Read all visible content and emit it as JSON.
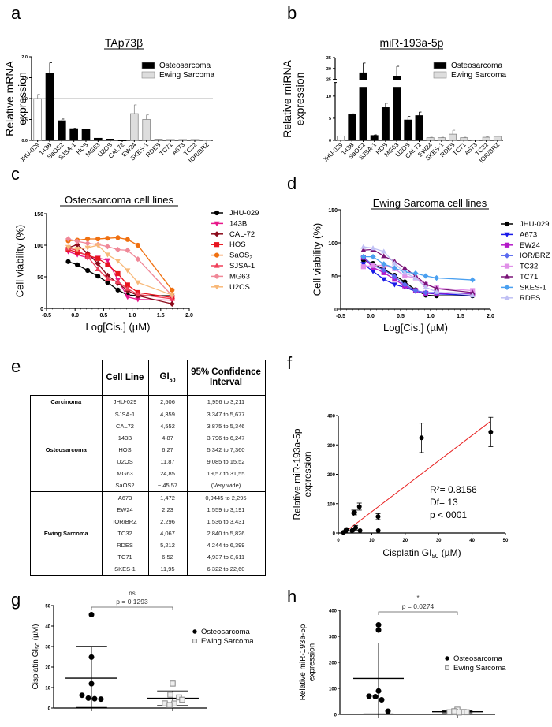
{
  "panels": {
    "a": "a",
    "b": "b",
    "c": "c",
    "d": "d",
    "e": "e",
    "f": "f",
    "g": "g",
    "h": "h"
  },
  "chart_data": [
    {
      "id": "a",
      "type": "bar",
      "title": "TAp73β",
      "xlabel": "",
      "ylabel": "Relative mRNA expression",
      "ylabel_lines": [
        "Relative mRNA",
        "expression"
      ],
      "ylim": [
        0,
        2.0
      ],
      "yticks": [
        "0.0",
        "0.5",
        "1.0",
        "1.5",
        "2.0"
      ],
      "reference_line": 1.0,
      "categories": [
        "JHU-029",
        "143B",
        "SaOS2",
        "SJSA-1",
        "HOS",
        "MG63",
        "U2OS",
        "CAL72",
        "EW24",
        "SKES-1",
        "RDES",
        "TC71",
        "A673",
        "TC32",
        "IOR/BRZ"
      ],
      "groups": [
        "control",
        "osteo",
        "osteo",
        "osteo",
        "osteo",
        "osteo",
        "osteo",
        "osteo",
        "ewing",
        "ewing",
        "ewing",
        "ewing",
        "ewing",
        "ewing",
        "ewing"
      ],
      "values": [
        1.0,
        1.6,
        0.47,
        0.28,
        0.26,
        0.05,
        0.03,
        0.0,
        0.64,
        0.5,
        0.03,
        0.02,
        0.02,
        0.02,
        0.01
      ],
      "errors": [
        0.1,
        0.26,
        0.04,
        0.01,
        0.01,
        0.0,
        0.0,
        0.0,
        0.21,
        0.11,
        0.0,
        0.0,
        0.0,
        0.0,
        0.0
      ],
      "legend": [
        {
          "name": "Osteosarcoma",
          "color": "#000000"
        },
        {
          "name": "Ewing Sarcoma",
          "color": "#dddddd"
        }
      ],
      "legend_position": "top-right"
    },
    {
      "id": "b",
      "type": "bar",
      "title": "miR-193a-5p",
      "ylabel": "Relative miRNA expression",
      "ylabel_lines": [
        "Relative miRNA",
        "expression"
      ],
      "ylim": [
        0,
        35
      ],
      "axis_break": [
        12,
        25
      ],
      "yticks_lower": [
        "0",
        "5",
        "10"
      ],
      "yticks_upper": [
        "25",
        "30",
        "35"
      ],
      "reference_line": 1.0,
      "categories": [
        "JHU-029",
        "143B",
        "SaOS2",
        "SJSA-1",
        "HOS",
        "MG63",
        "U2OS",
        "CAL72",
        "EW24",
        "SKES-1",
        "RDES",
        "TC71",
        "A673",
        "TC32",
        "IOR/BRZ"
      ],
      "groups": [
        "control",
        "osteo",
        "osteo",
        "osteo",
        "osteo",
        "osteo",
        "osteo",
        "osteo",
        "ewing",
        "ewing",
        "ewing",
        "ewing",
        "ewing",
        "ewing",
        "ewing"
      ],
      "values": [
        1.0,
        5.8,
        28.0,
        1.1,
        7.4,
        26.5,
        4.6,
        5.6,
        0.6,
        0.6,
        1.4,
        0.6,
        0.05,
        0.7,
        0.9
      ],
      "errors": [
        0.0,
        0.2,
        4.5,
        0.15,
        1.0,
        4.5,
        0.8,
        0.8,
        0.1,
        0.1,
        0.9,
        0.1,
        0.0,
        0.15,
        0.1
      ],
      "legend": [
        {
          "name": "Osteosarcoma",
          "color": "#000000"
        },
        {
          "name": "Ewing Sarcoma",
          "color": "#dddddd"
        }
      ],
      "legend_position": "top-right"
    },
    {
      "id": "c",
      "type": "line",
      "title": "Osteosarcoma cell lines",
      "xlabel": "Log[Cis.] (µM)",
      "ylabel": "Cell viability (%)",
      "xlim": [
        -0.5,
        2.0
      ],
      "ylim": [
        0,
        150
      ],
      "xticks": [
        "-0.5",
        "0.0",
        "0.5",
        "1.0",
        "1.5",
        "2.0"
      ],
      "yticks": [
        "0",
        "50",
        "100",
        "150"
      ],
      "x": [
        -0.12,
        0.04,
        0.22,
        0.4,
        0.57,
        0.75,
        0.92,
        1.1,
        1.7
      ],
      "series": [
        {
          "name": "JHU-029",
          "color": "#000000",
          "marker": "circle",
          "values": [
            74,
            69,
            60,
            51,
            41,
            29,
            21,
            20,
            20
          ]
        },
        {
          "name": "143B",
          "color": "#e8178a",
          "marker": "triangle-down",
          "values": [
            90,
            85,
            80,
            80,
            76,
            45,
            18,
            14,
            13
          ]
        },
        {
          "name": "CAL-72",
          "color": "#8b0a1a",
          "marker": "diamond",
          "values": [
            96,
            101,
            87,
            71,
            52,
            40,
            28,
            20,
            7
          ]
        },
        {
          "name": "HOS",
          "color": "#e8141e",
          "marker": "square",
          "values": [
            93,
            89,
            84,
            79,
            69,
            55,
            37,
            25,
            17
          ]
        },
        {
          "name": "SaOS2",
          "color": "#f07010",
          "marker": "circle",
          "values": [
            107,
            108,
            110,
            110,
            111,
            112,
            109,
            100,
            29
          ]
        },
        {
          "name": "SJSA-1",
          "color": "#f0405a",
          "marker": "triangle-up",
          "values": [
            95,
            92,
            82,
            62,
            47,
            42,
            31,
            22,
            15
          ]
        },
        {
          "name": "MG63",
          "color": "#f08898",
          "marker": "diamond",
          "values": [
            110,
            106,
            103,
            101,
            98,
            93,
            92,
            78,
            20
          ]
        },
        {
          "name": "U2OS",
          "color": "#f8b878",
          "marker": "triangle-down",
          "values": [
            97,
            94,
            96,
            100,
            85,
            75,
            60,
            41,
            21
          ]
        }
      ],
      "legend_position": "right"
    },
    {
      "id": "d",
      "type": "line",
      "title": "Ewing Sarcoma cell lines",
      "xlabel": "Log[Cis.] (µM)",
      "ylabel": "Cell viability (%)",
      "xlim": [
        -0.5,
        2.0
      ],
      "ylim": [
        0,
        150
      ],
      "xticks": [
        "-0.5",
        "0.0",
        "0.5",
        "1.0",
        "1.5",
        "2.0"
      ],
      "yticks": [
        "0",
        "50",
        "100",
        "150"
      ],
      "x": [
        -0.12,
        0.04,
        0.22,
        0.4,
        0.57,
        0.75,
        0.92,
        1.1,
        1.7
      ],
      "series": [
        {
          "name": "JHU-029",
          "color": "#000000",
          "marker": "circle",
          "values": [
            74,
            69,
            60,
            51,
            41,
            29,
            21,
            20,
            20
          ]
        },
        {
          "name": "A673",
          "color": "#1a1ae8",
          "marker": "triangle-down",
          "values": [
            68,
            57,
            45,
            37,
            33,
            27,
            24,
            23,
            21
          ]
        },
        {
          "name": "EW24",
          "color": "#b41ac8",
          "marker": "square",
          "values": [
            78,
            63,
            55,
            45,
            35,
            28,
            24,
            24,
            23
          ]
        },
        {
          "name": "IOR/BRZ",
          "color": "#5a6af0",
          "marker": "diamond",
          "values": [
            79,
            66,
            59,
            49,
            37,
            28,
            25,
            25,
            24
          ]
        },
        {
          "name": "TC32",
          "color": "#e090e8",
          "marker": "square",
          "values": [
            64,
            66,
            66,
            61,
            50,
            47,
            37,
            32,
            28
          ]
        },
        {
          "name": "TC71",
          "color": "#7a1478",
          "marker": "triangle-up",
          "values": [
            89,
            90,
            80,
            72,
            62,
            50,
            38,
            31,
            25
          ]
        },
        {
          "name": "SKES-1",
          "color": "#4aa0f0",
          "marker": "diamond",
          "values": [
            79,
            79,
            68,
            62,
            56,
            54,
            50,
            47,
            44
          ]
        },
        {
          "name": "RDES",
          "color": "#c0c0f4",
          "marker": "triangle-up",
          "values": [
            94,
            92,
            87,
            69,
            55,
            47,
            33,
            26,
            21
          ]
        }
      ],
      "legend_position": "right"
    },
    {
      "id": "f",
      "type": "scatter",
      "xlabel": "Cisplatin GI50 (µM)",
      "ylabel": "Relative miR-193a-5p expression",
      "ylabel_lines": [
        "Relative  miR-193a-5p",
        "expression"
      ],
      "xlim": [
        0,
        50
      ],
      "ylim": [
        0,
        400
      ],
      "xticks": [
        "0",
        "10",
        "20",
        "30",
        "40",
        "50"
      ],
      "yticks": [
        "0",
        "100",
        "200",
        "300",
        "400"
      ],
      "points": [
        {
          "x": 1.5,
          "y": 2
        },
        {
          "x": 2.2,
          "y": 6
        },
        {
          "x": 2.3,
          "y": 10
        },
        {
          "x": 2.5,
          "y": 12
        },
        {
          "x": 4.1,
          "y": 8
        },
        {
          "x": 4.4,
          "y": 10
        },
        {
          "x": 4.6,
          "y": 68,
          "err": 10
        },
        {
          "x": 4.9,
          "y": 70,
          "err": 8
        },
        {
          "x": 5.2,
          "y": 18,
          "err": 8
        },
        {
          "x": 6.3,
          "y": 90,
          "err": 12
        },
        {
          "x": 6.5,
          "y": 8
        },
        {
          "x": 11.9,
          "y": 56,
          "err": 10
        },
        {
          "x": 11.95,
          "y": 8
        },
        {
          "x": 24.9,
          "y": 324,
          "err": 50
        },
        {
          "x": 45.6,
          "y": 344,
          "err": 50
        }
      ],
      "fit_line": {
        "x": [
          3,
          45.5
        ],
        "y": [
          12,
          380
        ],
        "color": "#e82020"
      },
      "annotations": [
        "R²= 0.8156",
        "Df= 13",
        "p < 0001"
      ]
    },
    {
      "id": "g",
      "type": "scatter",
      "ylabel": "Cisplatin GI50 (µM)",
      "ylim": [
        0,
        50
      ],
      "yticks": [
        "0",
        "10",
        "20",
        "30",
        "40",
        "50"
      ],
      "significance": {
        "label": "ns",
        "p": "p = 0.1293"
      },
      "groups": [
        {
          "name": "Osteosarcoma",
          "marker": "filled-circle",
          "values": [
            45.57,
            24.85,
            11.87,
            6.27,
            4.87,
            4.552,
            4.359
          ],
          "mean": 14.6,
          "sd": 15.5
        },
        {
          "name": "Ewing Sarcoma",
          "marker": "open-square",
          "values": [
            11.95,
            6.52,
            5.212,
            4.067,
            2.296,
            2.23,
            1.472
          ],
          "mean": 4.8,
          "sd": 3.6
        }
      ],
      "legend_position": "right"
    },
    {
      "id": "h",
      "type": "scatter",
      "ylabel": "Relative miR-193a-5p expression",
      "ylabel_lines": [
        "Relative miR-193a-5p",
        "expression"
      ],
      "ylim": [
        0,
        400
      ],
      "yticks": [
        "0",
        "100",
        "200",
        "300",
        "400"
      ],
      "significance": {
        "label": "*",
        "p": "p = 0.0274"
      },
      "groups": [
        {
          "name": "Osteosarcoma",
          "marker": "filled-circle",
          "values": [
            344,
            324,
            90,
            70,
            68,
            56,
            12
          ],
          "mean": 138,
          "sd": 136
        },
        {
          "name": "Ewing Sarcoma",
          "marker": "open-square",
          "values": [
            18,
            10,
            9,
            8,
            8,
            7,
            12
          ],
          "mean": 10,
          "sd": 4
        }
      ],
      "legend_position": "right"
    }
  ],
  "table_e": {
    "headers": [
      "Cell Line",
      "GI",
      "50",
      "95% Confidence",
      "Interval"
    ],
    "groups": [
      {
        "name": "Carcinoma",
        "rows": [
          [
            "JHU-029",
            "2,506",
            "1,956 to 3,211"
          ]
        ]
      },
      {
        "name": "Osteosarcoma",
        "rows": [
          [
            "SJSA-1",
            "4,359",
            "3,347 to 5,677"
          ],
          [
            "CAL72",
            "4,552",
            "3,875 to 5,346"
          ],
          [
            "143B",
            "4,87",
            "3,796 to 6,247"
          ],
          [
            "HOS",
            "6,27",
            "5,342 to 7,360"
          ],
          [
            "U2OS",
            "11,87",
            "9,085 to 15,52"
          ],
          [
            "MG63",
            "24,85",
            "19,57 to 31,55"
          ],
          [
            "SaOS2",
            "~ 45,57",
            "(Very wide)"
          ]
        ]
      },
      {
        "name": "Ewing Sarcoma",
        "rows": [
          [
            "A673",
            "1,472",
            "0,9445 to 2,295"
          ],
          [
            "EW24",
            "2,23",
            "1,559 to 3,191"
          ],
          [
            "IOR/BRZ",
            "2,296",
            "1,536 to 3,431"
          ],
          [
            "TC32",
            "4,067",
            "2,840 to 5,826"
          ],
          [
            "RDES",
            "5,212",
            "4,244 to 6,399"
          ],
          [
            "TC71",
            "6,52",
            "4,937 to 8,611"
          ],
          [
            "SKES-1",
            "11,95",
            "6,322 to 22,60"
          ]
        ]
      }
    ]
  }
}
